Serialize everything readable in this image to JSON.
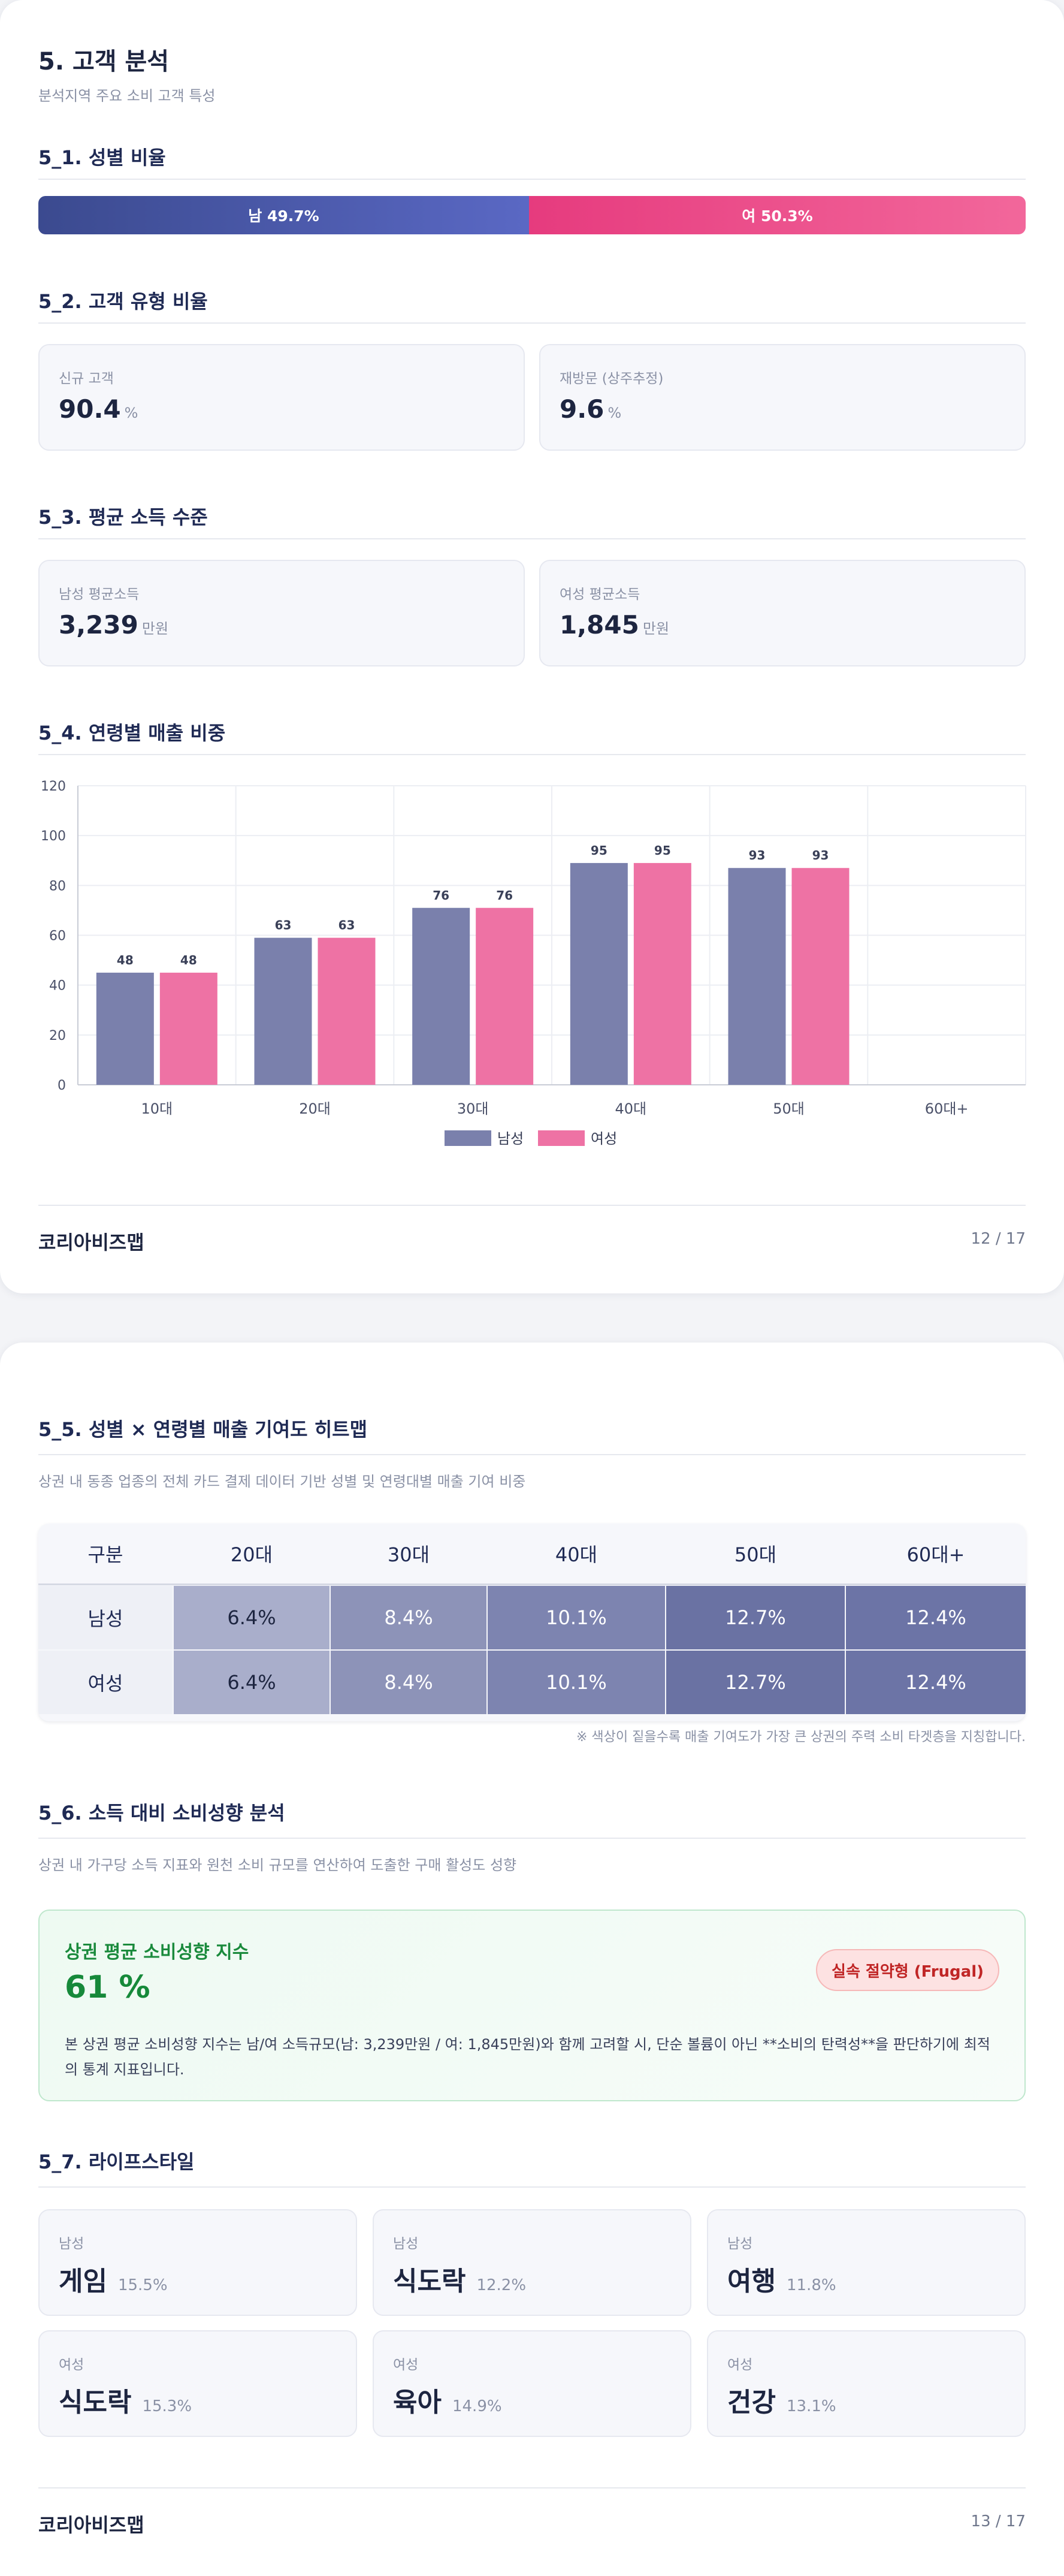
{
  "page1": {
    "title": "5. 고객 분석",
    "subtitle": "분석지역 주요 소비 고객 특성",
    "gender": {
      "heading": "5_1. 성별 비율",
      "male_label": "남 49.7%",
      "female_label": "여 50.3%",
      "male_share": 0.497,
      "male_color": "#4a58a8",
      "female_color": "#ee4a8a"
    },
    "customer_type": {
      "heading": "5_2. 고객 유형 비율",
      "new_label": "신규 고객",
      "new_value": "90.4",
      "new_unit": "%",
      "return_label": "재방문 (상주추정)",
      "return_value": "9.6",
      "return_unit": "%"
    },
    "income": {
      "heading": "5_3. 평균 소득 수준",
      "male_label": "남성 평균소득",
      "male_value": "3,239",
      "male_unit": "만원",
      "female_label": "여성 평균소득",
      "female_value": "1,845",
      "female_unit": "만원"
    },
    "age_sales": {
      "heading": "5_4. 연령별 매출 비중"
    },
    "footer": {
      "brand": "코리아비즈맵",
      "page": "12 / 17"
    }
  },
  "chart_data": {
    "type": "bar",
    "categories": [
      "10대",
      "20대",
      "30대",
      "40대",
      "50대",
      "60대+"
    ],
    "series": [
      {
        "name": "남성",
        "values": [
          48,
          63,
          76,
          95,
          93,
          null
        ],
        "color": "#7a80ac"
      },
      {
        "name": "여성",
        "values": [
          48,
          63,
          76,
          95,
          93,
          null
        ],
        "color": "#ee72a4"
      }
    ],
    "bar_heights": [
      45,
      59,
      71,
      89,
      87,
      null
    ],
    "ylim": [
      0,
      120
    ],
    "yticks": [
      0,
      20,
      40,
      60,
      80,
      100,
      120
    ],
    "grid": true,
    "legend": "bottom-center"
  },
  "page2": {
    "heatmap": {
      "heading": "5_5. 성별 × 연령별 매출 기여도 히트맵",
      "description": "상권 내 동종 업종의 전체 카드 결제 데이터 기반 성별 및 연령대별 매출 기여 비중",
      "corner": "구분",
      "columns": [
        "20대",
        "30대",
        "40대",
        "50대",
        "60대+"
      ],
      "rows": [
        {
          "label": "남성",
          "values": [
            "6.4%",
            "8.4%",
            "10.1%",
            "12.7%",
            "12.4%"
          ]
        },
        {
          "label": "여성",
          "values": [
            "6.4%",
            "8.4%",
            "10.1%",
            "12.7%",
            "12.4%"
          ]
        }
      ],
      "cell_colors": [
        "#a9aecb",
        "#8d93b8",
        "#7d84b0",
        "#6a72a3",
        "#6c74a6"
      ],
      "note": "※ 색상이 짙을수록 매출 기여도가 가장 큰 상권의 주력 소비 타겟층을 지칭합니다."
    },
    "propensity": {
      "heading": "5_6. 소득 대비 소비성향 분석",
      "description": "상권 내 가구당 소득 지표와 원천 소비 규모를 연산하여 도출한 구매 활성도 성향",
      "box_title": "상권 평균 소비성향 지수",
      "value": "61 %",
      "badge": "실속 절약형 (Frugal)",
      "body": "본 상권 평균 소비성향 지수는 남/여 소득규모(남: 3,239만원 / 여: 1,845만원)와 함께 고려할 시, 단순 볼륨이 아닌 **소비의 탄력성**을 판단하기에 최적의 통계 지표입니다."
    },
    "lifestyle": {
      "heading": "5_7. 라이프스타일",
      "items": [
        {
          "gender": "남성",
          "name": "게임",
          "pct": "15.5%"
        },
        {
          "gender": "남성",
          "name": "식도락",
          "pct": "12.2%"
        },
        {
          "gender": "남성",
          "name": "여행",
          "pct": "11.8%"
        },
        {
          "gender": "여성",
          "name": "식도락",
          "pct": "15.3%"
        },
        {
          "gender": "여성",
          "name": "육아",
          "pct": "14.9%"
        },
        {
          "gender": "여성",
          "name": "건강",
          "pct": "13.1%"
        }
      ]
    },
    "footer": {
      "brand": "코리아비즈맵",
      "page": "13 / 17"
    }
  }
}
